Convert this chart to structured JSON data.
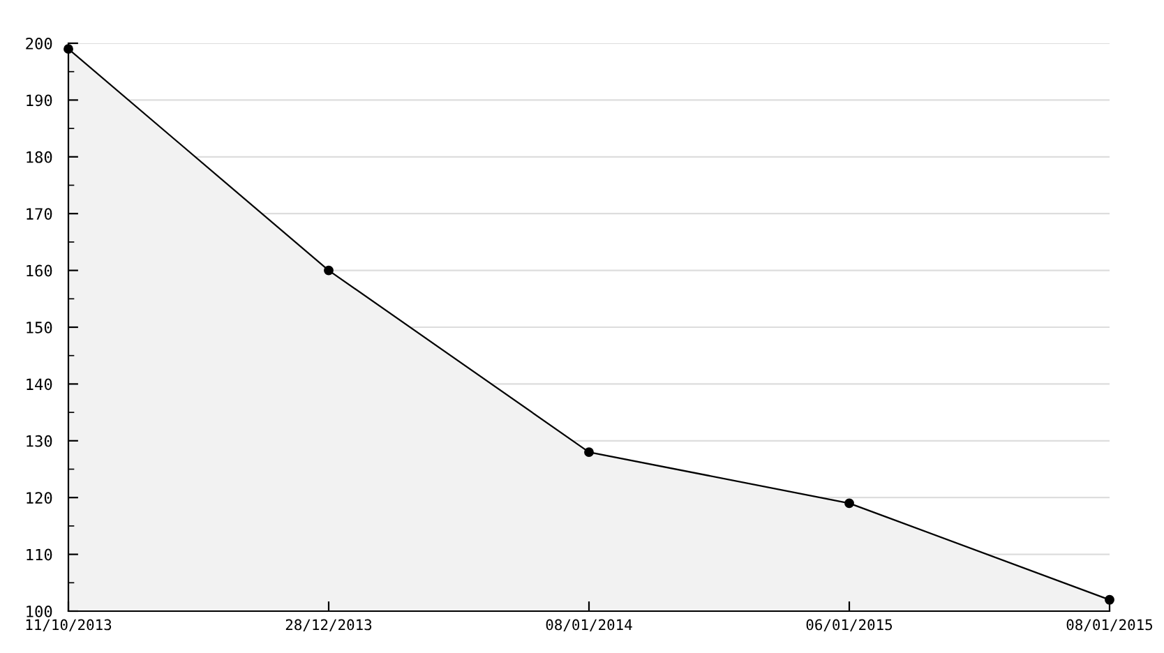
{
  "chart_data": {
    "type": "area",
    "categories": [
      "11/10/2013",
      "28/12/2013",
      "08/01/2014",
      "06/01/2015",
      "08/01/2015"
    ],
    "series": [
      {
        "color": "#f2f2f2",
        "values": [
          199,
          160,
          128,
          119,
          102
        ]
      }
    ],
    "ylim": [
      100,
      200
    ],
    "yticks": [
      100,
      {
        "value": 105,
        "label": null
      },
      110,
      {
        "value": 115,
        "label": null
      },
      120,
      {
        "value": 125,
        "label": null
      },
      130,
      {
        "value": 135,
        "label": null
      },
      140,
      {
        "value": 145,
        "label": null
      },
      150,
      {
        "value": 155,
        "label": null
      },
      160,
      {
        "value": 165,
        "label": null
      },
      170,
      {
        "value": 175,
        "label": null
      },
      180,
      {
        "value": 185,
        "label": null
      },
      190,
      {
        "value": 195,
        "label": null
      },
      200
    ],
    "grid": "y",
    "marker": "circle",
    "line_style": "solid",
    "legend": false
  }
}
